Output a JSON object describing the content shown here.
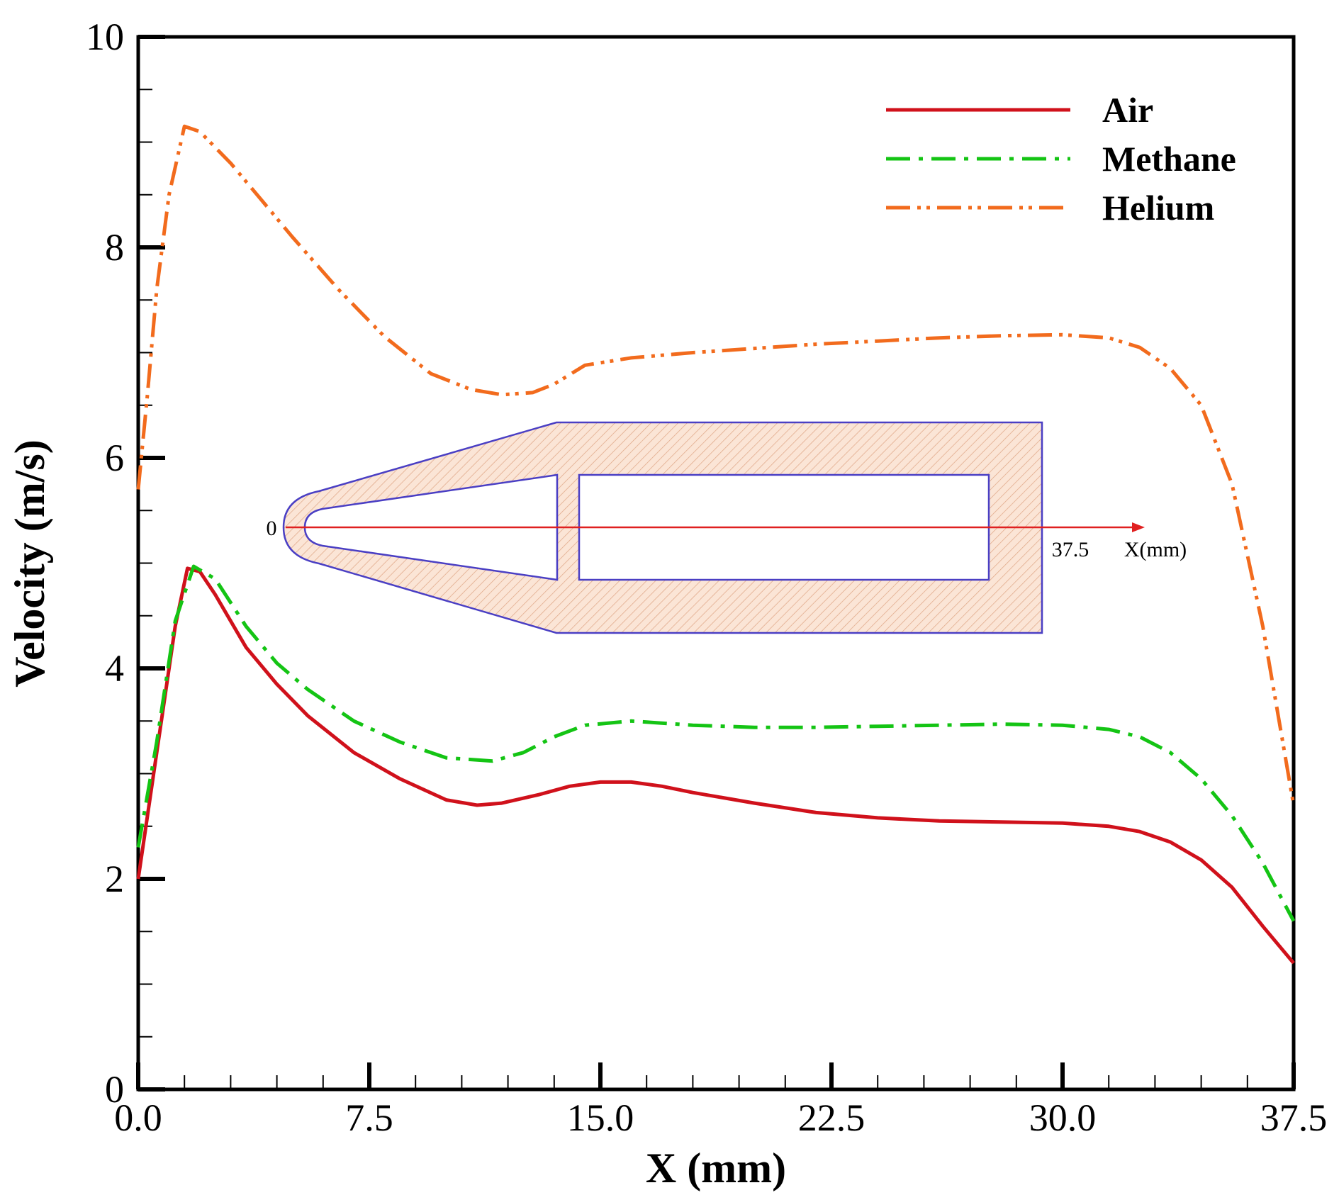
{
  "chart_data": {
    "type": "line",
    "title": "",
    "xlabel": "X (mm)",
    "ylabel": "Velocity (m/s)",
    "xlim": [
      0,
      37.5
    ],
    "ylim": [
      0,
      10
    ],
    "x_ticks": [
      "0.0",
      "7.5",
      "15.0",
      "22.5",
      "30.0",
      "37.5"
    ],
    "y_ticks": [
      "0",
      "2",
      "4",
      "6",
      "8",
      "10"
    ],
    "grid": false,
    "legend_position": "top-right",
    "series": [
      {
        "name": "Air",
        "color": "#d0111b",
        "style": "solid",
        "points": [
          [
            0,
            2.0
          ],
          [
            0.6,
            3.2
          ],
          [
            1.2,
            4.4
          ],
          [
            1.6,
            4.95
          ],
          [
            2.0,
            4.92
          ],
          [
            2.5,
            4.7
          ],
          [
            3.5,
            4.2
          ],
          [
            4.5,
            3.85
          ],
          [
            5.5,
            3.55
          ],
          [
            7,
            3.2
          ],
          [
            8.5,
            2.95
          ],
          [
            10,
            2.75
          ],
          [
            11,
            2.7
          ],
          [
            11.8,
            2.72
          ],
          [
            13,
            2.8
          ],
          [
            14,
            2.88
          ],
          [
            15,
            2.92
          ],
          [
            16,
            2.92
          ],
          [
            17,
            2.88
          ],
          [
            18,
            2.82
          ],
          [
            20,
            2.72
          ],
          [
            22,
            2.63
          ],
          [
            24,
            2.58
          ],
          [
            26,
            2.55
          ],
          [
            28,
            2.54
          ],
          [
            30,
            2.53
          ],
          [
            31.5,
            2.5
          ],
          [
            32.5,
            2.45
          ],
          [
            33.5,
            2.35
          ],
          [
            34.5,
            2.18
          ],
          [
            35.5,
            1.92
          ],
          [
            36.5,
            1.55
          ],
          [
            37.5,
            1.2
          ]
        ]
      },
      {
        "name": "Methane",
        "color": "#14c414",
        "style": "dashdot",
        "points": [
          [
            0,
            2.3
          ],
          [
            0.6,
            3.3
          ],
          [
            1.2,
            4.45
          ],
          [
            1.8,
            4.97
          ],
          [
            2.5,
            4.85
          ],
          [
            3.5,
            4.4
          ],
          [
            4.5,
            4.05
          ],
          [
            5.5,
            3.8
          ],
          [
            7,
            3.5
          ],
          [
            8.5,
            3.3
          ],
          [
            10,
            3.15
          ],
          [
            11.5,
            3.12
          ],
          [
            12.5,
            3.2
          ],
          [
            13.5,
            3.35
          ],
          [
            14.5,
            3.46
          ],
          [
            16,
            3.5
          ],
          [
            18,
            3.46
          ],
          [
            20,
            3.44
          ],
          [
            22,
            3.44
          ],
          [
            24,
            3.45
          ],
          [
            26,
            3.46
          ],
          [
            28,
            3.47
          ],
          [
            30,
            3.46
          ],
          [
            31.5,
            3.42
          ],
          [
            32.5,
            3.35
          ],
          [
            33.5,
            3.2
          ],
          [
            34.5,
            2.95
          ],
          [
            35.5,
            2.6
          ],
          [
            36.5,
            2.15
          ],
          [
            37.5,
            1.6
          ]
        ]
      },
      {
        "name": "Helium",
        "color": "#f26b1d",
        "style": "dashdotdot",
        "points": [
          [
            0,
            5.7
          ],
          [
            0.3,
            6.6
          ],
          [
            0.6,
            7.6
          ],
          [
            1.0,
            8.5
          ],
          [
            1.5,
            9.15
          ],
          [
            2.0,
            9.1
          ],
          [
            3.0,
            8.8
          ],
          [
            4.0,
            8.45
          ],
          [
            5.0,
            8.1
          ],
          [
            6.5,
            7.6
          ],
          [
            8.0,
            7.15
          ],
          [
            9.5,
            6.8
          ],
          [
            10.8,
            6.65
          ],
          [
            11.8,
            6.6
          ],
          [
            12.8,
            6.62
          ],
          [
            13.5,
            6.7
          ],
          [
            14.5,
            6.88
          ],
          [
            16,
            6.95
          ],
          [
            18,
            7.0
          ],
          [
            20,
            7.04
          ],
          [
            22,
            7.08
          ],
          [
            24,
            7.11
          ],
          [
            26,
            7.14
          ],
          [
            28,
            7.16
          ],
          [
            30,
            7.17
          ],
          [
            31.5,
            7.14
          ],
          [
            32.5,
            7.05
          ],
          [
            33.5,
            6.85
          ],
          [
            34.5,
            6.5
          ],
          [
            35.5,
            5.75
          ],
          [
            36.5,
            4.4
          ],
          [
            37.5,
            2.7
          ]
        ]
      }
    ],
    "inset": {
      "origin_label": "0",
      "end_label": "37.5",
      "axis_label": "X(mm)"
    }
  }
}
